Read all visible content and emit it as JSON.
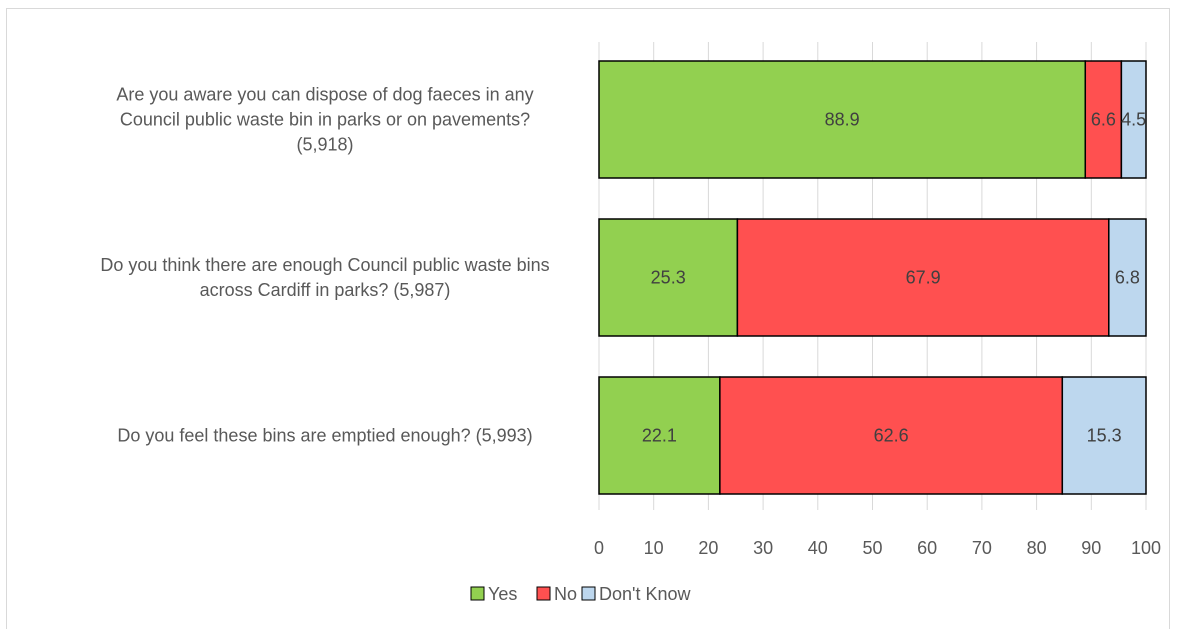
{
  "chart_data": {
    "type": "bar",
    "orientation": "horizontal",
    "stacked": true,
    "title": "",
    "xlabel": "",
    "ylabel": "",
    "xlim": [
      0,
      100
    ],
    "xticks": [
      0,
      10,
      20,
      30,
      40,
      50,
      60,
      70,
      80,
      90,
      100
    ],
    "grid": "vertical",
    "legend_position": "bottom",
    "categories": [
      [
        "Are you aware you can dispose of dog faeces in any",
        "Council public waste bin in parks or on pavements?",
        "(5,918)"
      ],
      [
        "Do you think there are enough Council public waste bins",
        "across Cardiff in parks? (5,987)"
      ],
      [
        "Do you feel these bins are emptied enough? (5,993)"
      ]
    ],
    "series": [
      {
        "name": "Yes",
        "color": "#92d050",
        "values": [
          88.9,
          25.3,
          22.1
        ]
      },
      {
        "name": "No",
        "color": "#ff5050",
        "values": [
          6.6,
          67.9,
          62.6
        ]
      },
      {
        "name": "Don't Know",
        "color": "#bdd7ee",
        "values": [
          4.5,
          6.8,
          15.3
        ]
      }
    ]
  }
}
